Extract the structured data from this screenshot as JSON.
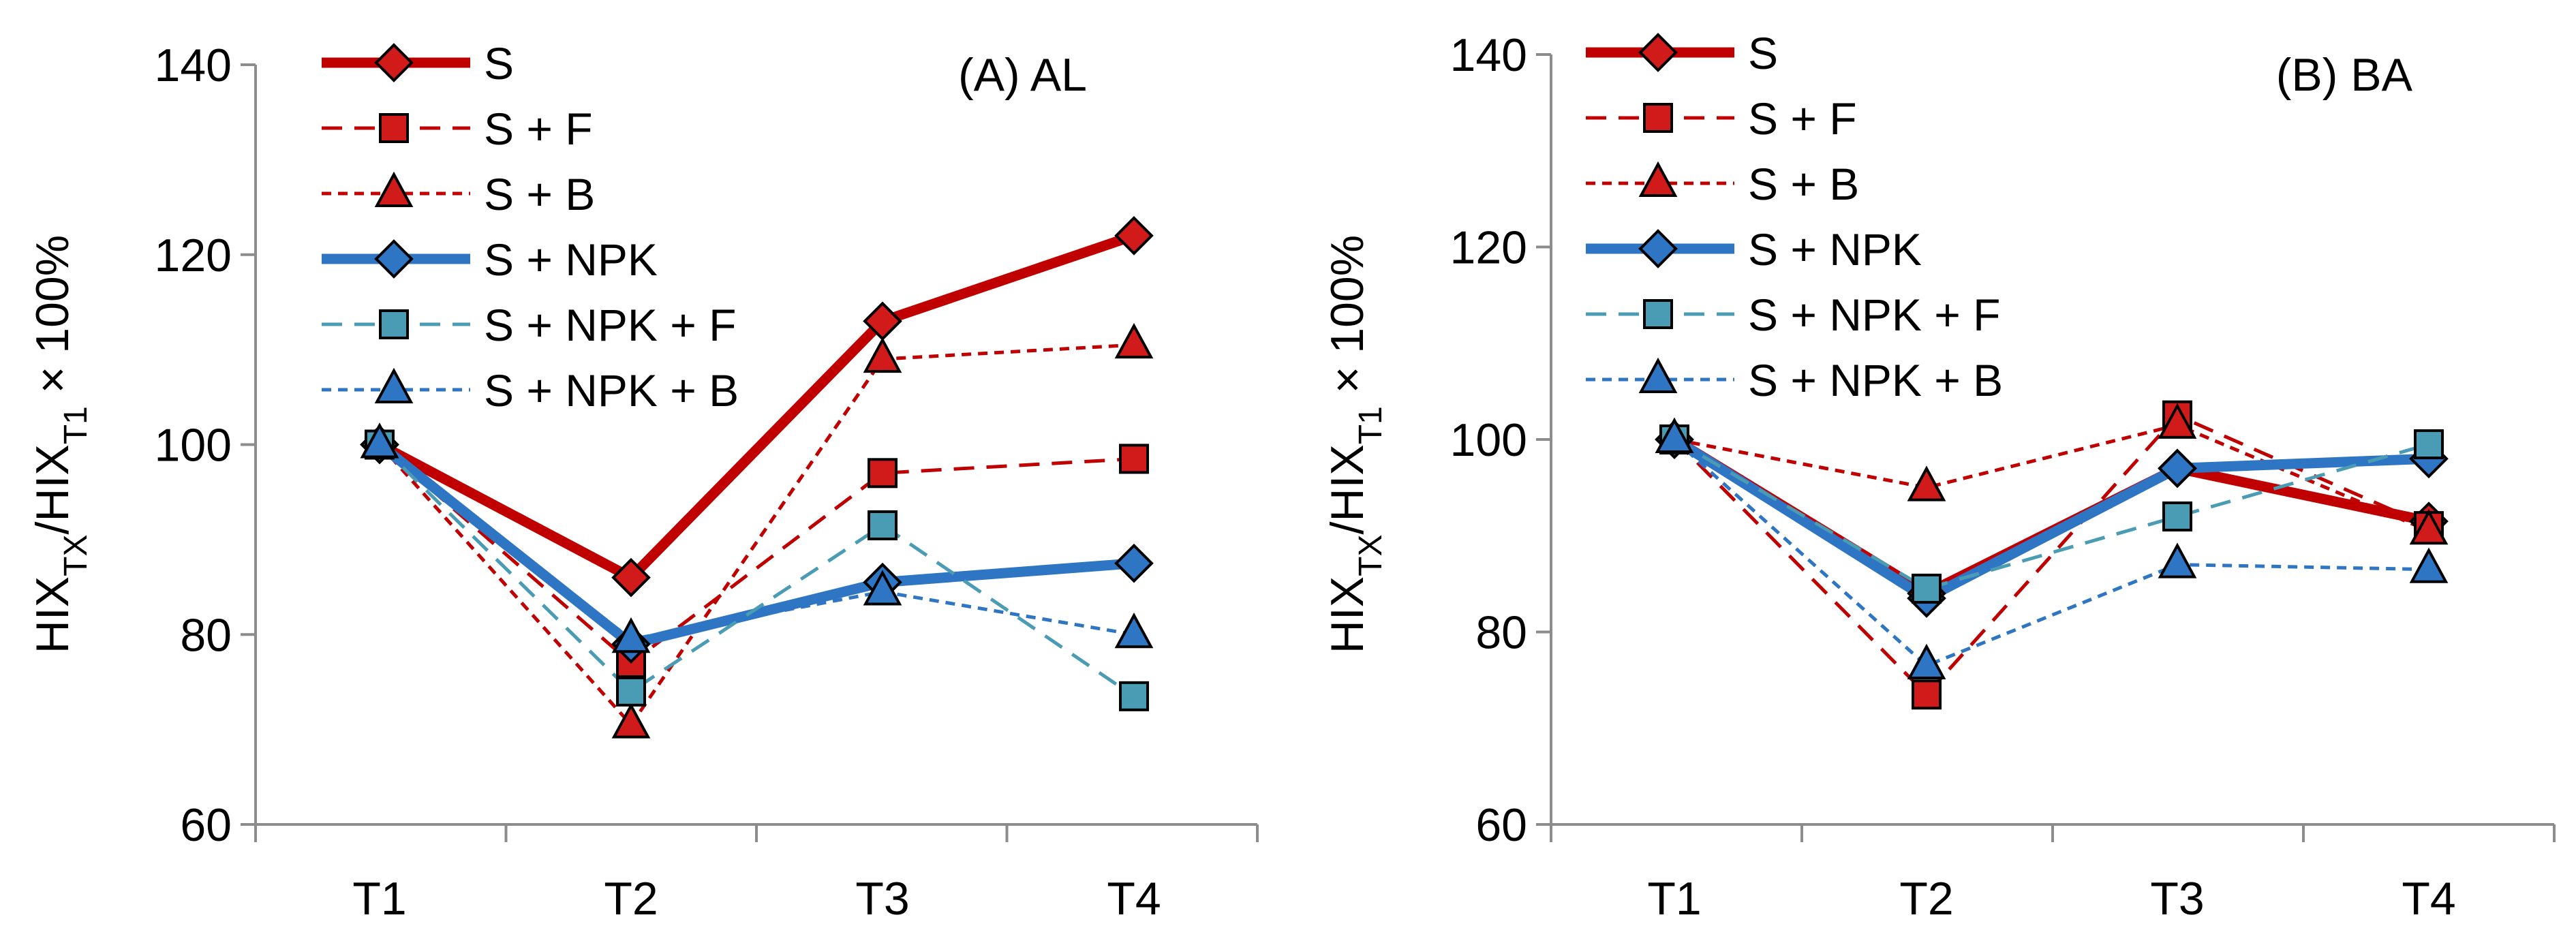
{
  "colors": {
    "red": "#C00000",
    "red_marker": "#D11A1A",
    "blue": "#2E75C4",
    "teal": "#4A9CB5",
    "blue_dashed": "#2E75C4",
    "marker_stroke": "#000000"
  },
  "chart_data": [
    {
      "type": "line",
      "title": "(A) AL",
      "ylabel": "HIX_TX/HIX_T1 × 100%",
      "categories": [
        "T1",
        "T2",
        "T3",
        "T4"
      ],
      "ylim": [
        60,
        140
      ],
      "yticks": [
        "60",
        "80",
        "100",
        "120",
        "140"
      ],
      "grid": false,
      "legend_position": "top-left",
      "series": [
        {
          "name": "S",
          "values": [
            100,
            86,
            113,
            122
          ],
          "line": "solid-thick",
          "color": "red",
          "marker": "diamond"
        },
        {
          "name": "S + F",
          "values": [
            100,
            77,
            97,
            98.5
          ],
          "line": "dashed",
          "color": "red",
          "marker": "square"
        },
        {
          "name": "S + B",
          "values": [
            100,
            70.5,
            109,
            110.5
          ],
          "line": "dotted",
          "color": "red",
          "marker": "triangle"
        },
        {
          "name": "S + NPK",
          "values": [
            100,
            79,
            85.5,
            87.5
          ],
          "line": "solid-thick",
          "color": "blue",
          "marker": "diamond"
        },
        {
          "name": "S + NPK + F",
          "values": [
            100,
            74,
            91.5,
            73.5
          ],
          "line": "dashed",
          "color": "teal",
          "marker": "square"
        },
        {
          "name": "S + NPK + B",
          "values": [
            100,
            79.5,
            84.5,
            80
          ],
          "line": "dotted",
          "color": "blue",
          "marker": "triangle"
        }
      ]
    },
    {
      "type": "line",
      "title": "(B) BA",
      "ylabel": "HIX_TX/HIX_T1 × 100%",
      "categories": [
        "T1",
        "T2",
        "T3",
        "T4"
      ],
      "ylim": [
        60,
        140
      ],
      "yticks": [
        "60",
        "80",
        "100",
        "120",
        "140"
      ],
      "grid": false,
      "legend_position": "top-left",
      "series": [
        {
          "name": "S",
          "values": [
            100,
            84,
            97,
            91.5
          ],
          "line": "solid-thick",
          "color": "red",
          "marker": "diamond"
        },
        {
          "name": "S + F",
          "values": [
            100,
            73.5,
            102.5,
            91
          ],
          "line": "dashed",
          "color": "red",
          "marker": "square"
        },
        {
          "name": "S + B",
          "values": [
            100,
            95,
            101.5,
            90.5
          ],
          "line": "dotted",
          "color": "red",
          "marker": "triangle"
        },
        {
          "name": "S + NPK",
          "values": [
            100,
            83.5,
            97,
            98
          ],
          "line": "solid-thick",
          "color": "blue",
          "marker": "diamond"
        },
        {
          "name": "S + NPK + F",
          "values": [
            100,
            84.5,
            92,
            99.5
          ],
          "line": "dashed",
          "color": "teal",
          "marker": "square"
        },
        {
          "name": "S + NPK + B",
          "values": [
            100,
            76.5,
            87,
            86.5
          ],
          "line": "dotted",
          "color": "blue",
          "marker": "triangle"
        }
      ]
    }
  ]
}
